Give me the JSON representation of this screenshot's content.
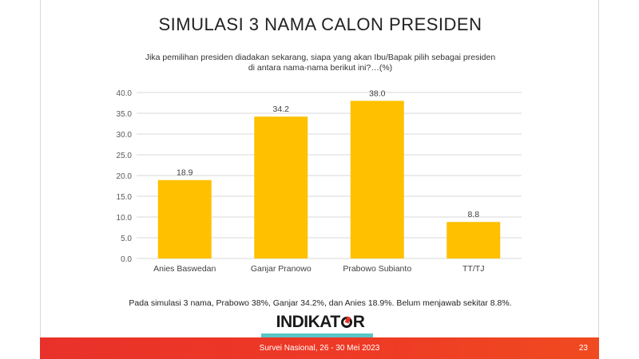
{
  "slide": {
    "title": "SIMULASI 3 NAMA CALON PRESIDEN",
    "subtitle": "Jika pemilihan presiden diadakan sekarang, siapa yang akan Ibu/Bapak pilih sebagai presiden di antara nama-nama berikut ini?…(%)",
    "note": "Pada simulasi 3 nama, Prabowo 38%, Ganjar 34.2%, dan Anies 18.9%. Belum menjawab sekitar 8.8%.",
    "logo": {
      "pre": "INDIKAT",
      "post": "R"
    },
    "footer": "Survei Nasional, 26 - 30 Mei 2023",
    "page_number": "23"
  },
  "colors": {
    "bar": "#FFC000",
    "footer": "#E8312A",
    "accent": "#5BC6C8",
    "grid": "#D9D9D9"
  },
  "chart_data": {
    "type": "bar",
    "categories": [
      "Anies Baswedan",
      "Ganjar Pranowo",
      "Prabowo Subianto",
      "TT/TJ"
    ],
    "values": [
      18.9,
      34.2,
      38.0,
      8.8
    ],
    "value_labels": [
      "18.9",
      "34.2",
      "38.0",
      "8.8"
    ],
    "yticks": [
      "0.0",
      "5.0",
      "10.0",
      "15.0",
      "20.0",
      "25.0",
      "30.0",
      "35.0",
      "40.0"
    ],
    "ylim": [
      0,
      40
    ],
    "grid": true
  }
}
